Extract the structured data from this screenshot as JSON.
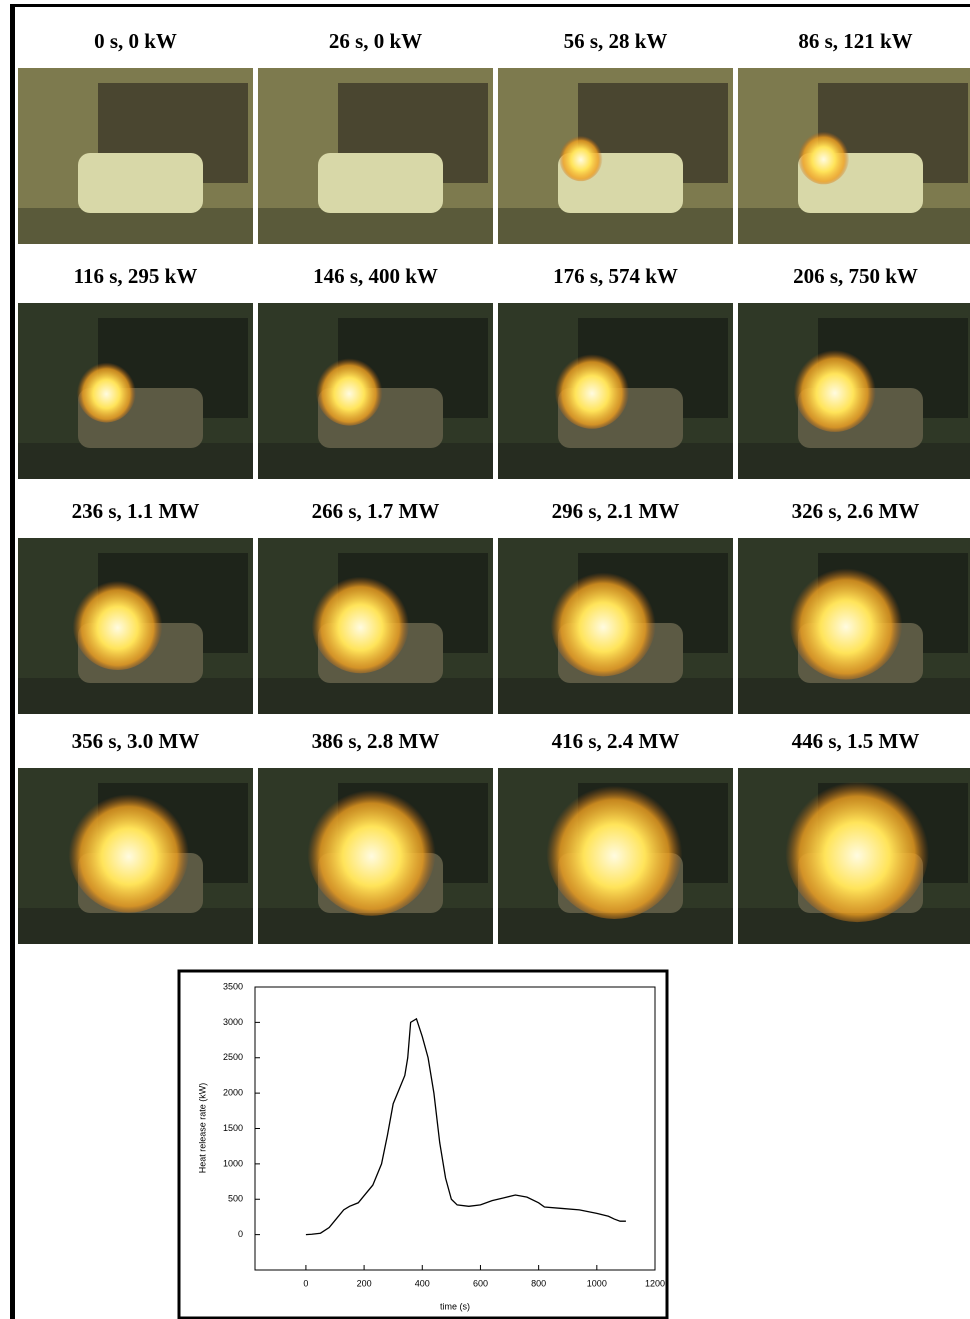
{
  "frames": [
    "0 s, 0 kW",
    "26 s, 0 kW",
    "56 s, 28 kW",
    "86 s, 121 kW",
    "116 s, 295 kW",
    "146 s, 400 kW",
    "176 s, 574 kW",
    "206 s, 750 kW",
    "236 s, 1.1 MW",
    "266 s, 1.7 MW",
    "296 s, 2.1 MW",
    "326 s, 2.6 MW",
    "356 s, 3.0 MW",
    "386 s, 2.8 MW",
    "416 s, 2.4 MW",
    "446 s, 1.5 MW"
  ],
  "chart_data": {
    "type": "line",
    "xlabel": "time (s)",
    "ylabel": "Heat release rate (kW)",
    "color": "#000000",
    "x": [
      0,
      20,
      50,
      80,
      100,
      130,
      150,
      180,
      200,
      230,
      260,
      280,
      300,
      320,
      340,
      350,
      360,
      380,
      400,
      420,
      440,
      460,
      480,
      500,
      520,
      560,
      600,
      640,
      680,
      720,
      760,
      800,
      820,
      880,
      940,
      1000,
      1040,
      1060,
      1080,
      1100
    ],
    "values": [
      0,
      5,
      20,
      100,
      200,
      350,
      400,
      450,
      550,
      700,
      1000,
      1400,
      1850,
      2050,
      2250,
      2500,
      3000,
      3050,
      2800,
      2500,
      2000,
      1300,
      800,
      500,
      420,
      400,
      420,
      480,
      520,
      560,
      530,
      450,
      390,
      370,
      350,
      300,
      260,
      220,
      190,
      190
    ],
    "xlim": [
      -175,
      1200
    ],
    "ylim": [
      -500,
      3500
    ],
    "xticks": [
      0,
      200,
      400,
      600,
      800,
      1000,
      1200
    ],
    "yticks": [
      0,
      500,
      1000,
      1500,
      2000,
      2500,
      3000,
      3500
    ]
  }
}
